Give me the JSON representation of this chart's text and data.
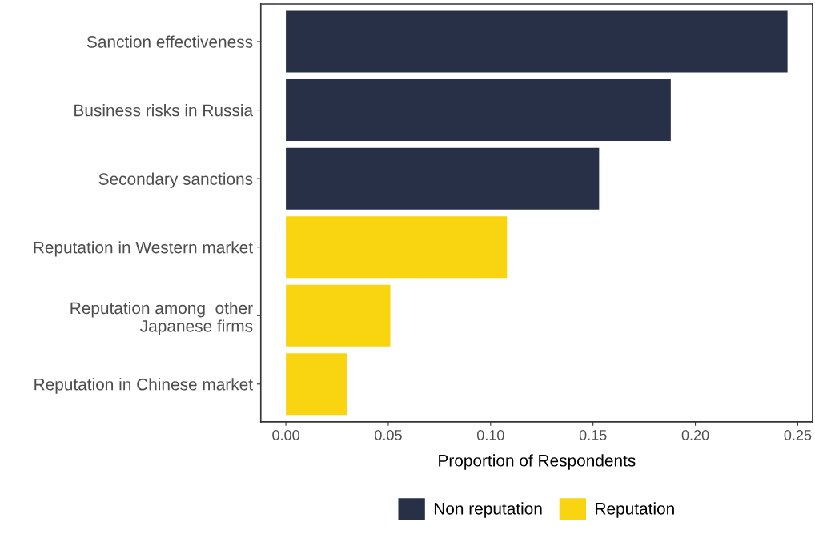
{
  "chart_data": {
    "type": "bar",
    "orientation": "horizontal",
    "xlabel": "Proportion of Respondents",
    "categories": [
      "Sanction effectiveness",
      "Business risks in Russia",
      "Secondary sanctions",
      "Reputation in Western market",
      "Reputation among  other\nJapanese firms",
      "Reputation in Chinese market"
    ],
    "series": [
      {
        "name": "Non reputation",
        "color": "#283048",
        "values": [
          0.245,
          0.188,
          0.153,
          null,
          null,
          null
        ]
      },
      {
        "name": "Reputation",
        "color": "#f9d511",
        "values": [
          null,
          null,
          null,
          0.108,
          0.051,
          0.03
        ]
      }
    ],
    "xlim": [
      -0.01225,
      0.25725
    ],
    "xticks": [
      {
        "value": 0,
        "label": "0.00"
      },
      {
        "value": 0.05,
        "label": "0.05"
      },
      {
        "value": 0.1,
        "label": "0.10"
      },
      {
        "value": 0.15,
        "label": "0.15"
      },
      {
        "value": 0.2,
        "label": "0.20"
      },
      {
        "value": 0.25,
        "label": "0.25"
      }
    ],
    "grid": false,
    "legend": "bottom"
  }
}
